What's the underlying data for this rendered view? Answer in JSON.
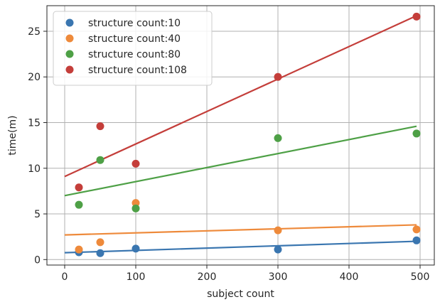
{
  "chart_data": {
    "type": "scatter",
    "title": "",
    "xlabel": "subject count",
    "ylabel": "time(m)",
    "xlim": [
      -25,
      520
    ],
    "ylim": [
      -0.6,
      27.8
    ],
    "xticks": [
      0,
      100,
      200,
      300,
      400,
      500
    ],
    "yticks": [
      0,
      5,
      10,
      15,
      20,
      25
    ],
    "grid": true,
    "legend_position": "top-left",
    "series": [
      {
        "name": "structure count:10",
        "color": "#3a76b0",
        "points": [
          [
            20,
            0.8
          ],
          [
            50,
            0.7
          ],
          [
            100,
            1.2
          ],
          [
            300,
            1.1
          ],
          [
            495,
            2.1
          ]
        ],
        "fit": [
          [
            0,
            0.75
          ],
          [
            495,
            2.0
          ]
        ]
      },
      {
        "name": "structure count:40",
        "color": "#ee8a3b",
        "points": [
          [
            20,
            1.1
          ],
          [
            50,
            1.9
          ],
          [
            100,
            6.2
          ],
          [
            300,
            3.2
          ],
          [
            495,
            3.3
          ]
        ],
        "fit": [
          [
            0,
            2.7
          ],
          [
            495,
            3.8
          ]
        ]
      },
      {
        "name": "structure count:80",
        "color": "#4ea046",
        "points": [
          [
            20,
            6.0
          ],
          [
            50,
            10.9
          ],
          [
            100,
            5.6
          ],
          [
            300,
            13.3
          ],
          [
            495,
            13.8
          ]
        ],
        "fit": [
          [
            0,
            7.0
          ],
          [
            495,
            14.6
          ]
        ]
      },
      {
        "name": "structure count:108",
        "color": "#c43e3a",
        "points": [
          [
            20,
            7.9
          ],
          [
            50,
            14.6
          ],
          [
            100,
            10.5
          ],
          [
            300,
            20.0
          ],
          [
            495,
            26.6
          ]
        ],
        "fit": [
          [
            0,
            9.1
          ],
          [
            495,
            26.7
          ]
        ]
      }
    ]
  }
}
